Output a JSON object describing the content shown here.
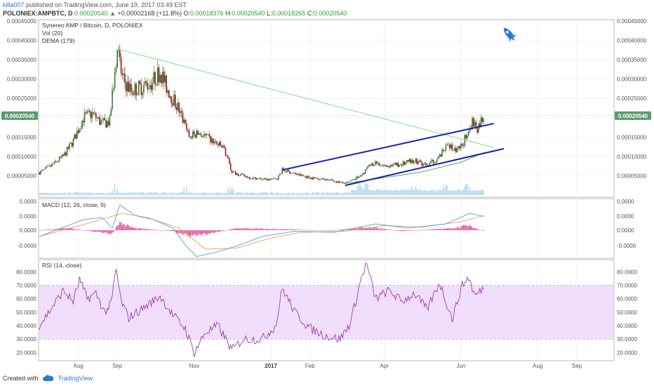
{
  "header": {
    "username": "killa007",
    "published": " published on TradingView.com, June 19, 2017 03:49 EST",
    "symbol": "POLONIEX:AMPBTC, D",
    "last": "0.00020540",
    "change_arrow": "▲",
    "change": "+0.00002168 (+11.8%)",
    "o_label": "O:",
    "o_value": "0.00018376",
    "h_label": "H:",
    "h_value": "0.00020540",
    "l_label": "L:",
    "l_value": "0.00018265",
    "c_label": "C:",
    "c_value": "0.00020540"
  },
  "footer": {
    "created_with": "Created with",
    "brand": "TradingView"
  },
  "colors": {
    "up": "#2e7d32",
    "down": "#8e1b1b",
    "channel": "#1a1ab5",
    "trend": "#7fe07f",
    "dema": "#3aa53a",
    "volume": "#a9d3ee",
    "macd_line": "#4aa3e8",
    "signal": "#f0a050",
    "hist": "#e0509a",
    "rsi": "#9b3db0",
    "rsi_band": "#f1defa",
    "price_tag": "#5a9b6e"
  },
  "chart_data": [
    {
      "type": "candlestick",
      "title": "Synereo AMP / Bitcoin, D, POLONIEX",
      "indicators": [
        "Vol (20)",
        "DEMA (179)"
      ],
      "last_price_label": "0.00020540",
      "yticks": [
        "0.00045000",
        "0.00040000",
        "0.00035000",
        "0.00030000",
        "0.00025000",
        "0.00020000",
        "0.00015000",
        "0.00010000",
        "0.00005000"
      ],
      "ylim": [
        0,
        0.00045
      ],
      "x_labels": [
        "Aug",
        "Sep",
        "Nov",
        "2017",
        "Feb",
        "Apr",
        "Jun",
        "Aug",
        "Sep"
      ],
      "x_label_dates": [
        "2016-08-01",
        "2016-09-01",
        "2016-11-01",
        "2017-01-01",
        "2017-02-01",
        "2017-04-01",
        "2017-06-01",
        "2017-08-01",
        "2017-09-01"
      ],
      "x_range": [
        "2016-07-01",
        "2017-09-30"
      ],
      "close_keyframes": [
        [
          "2016-07-01",
          5.8e-05
        ],
        [
          "2016-07-10",
          7.5e-05
        ],
        [
          "2016-07-20",
          0.0001
        ],
        [
          "2016-07-28",
          0.00014
        ],
        [
          "2016-08-05",
          0.0002
        ],
        [
          "2016-08-12",
          0.00021
        ],
        [
          "2016-08-20",
          0.000185
        ],
        [
          "2016-08-26",
          0.00019
        ],
        [
          "2016-08-30",
          0.00033
        ],
        [
          "2016-09-01",
          0.00038
        ],
        [
          "2016-09-05",
          0.0003
        ],
        [
          "2016-09-12",
          0.00027
        ],
        [
          "2016-09-20",
          0.00028
        ],
        [
          "2016-09-28",
          0.00029
        ],
        [
          "2016-10-05",
          0.00032
        ],
        [
          "2016-10-10",
          0.00028
        ],
        [
          "2016-10-20",
          0.00022
        ],
        [
          "2016-10-28",
          0.00015
        ],
        [
          "2016-11-05",
          0.00016
        ],
        [
          "2016-11-15",
          0.00014
        ],
        [
          "2016-11-25",
          0.00012
        ],
        [
          "2016-12-01",
          6e-05
        ],
        [
          "2016-12-15",
          4.5e-05
        ],
        [
          "2016-12-30",
          4e-05
        ],
        [
          "2017-01-06",
          4.3e-05
        ],
        [
          "2017-01-10",
          6.5e-05
        ],
        [
          "2017-01-20",
          5.5e-05
        ],
        [
          "2017-02-01",
          4.5e-05
        ],
        [
          "2017-02-15",
          4e-05
        ],
        [
          "2017-03-01",
          3e-05
        ],
        [
          "2017-03-08",
          4e-05
        ],
        [
          "2017-03-15",
          5.5e-05
        ],
        [
          "2017-03-20",
          7.5e-05
        ],
        [
          "2017-03-25",
          8.5e-05
        ],
        [
          "2017-04-01",
          7.5e-05
        ],
        [
          "2017-04-15",
          8e-05
        ],
        [
          "2017-04-25",
          9e-05
        ],
        [
          "2017-05-05",
          7.5e-05
        ],
        [
          "2017-05-15",
          0.0001
        ],
        [
          "2017-05-22",
          0.00013
        ],
        [
          "2017-05-28",
          0.00011
        ],
        [
          "2017-06-02",
          0.00013
        ],
        [
          "2017-06-07",
          0.00017
        ],
        [
          "2017-06-10",
          0.00019
        ],
        [
          "2017-06-14",
          0.000175
        ],
        [
          "2017-06-19",
          0.0002054
        ]
      ],
      "volume_peak_dates": [
        "2016-08-30",
        "2016-10-25",
        "2016-11-30",
        "2017-03-12",
        "2017-03-18",
        "2017-04-25",
        "2017-05-20",
        "2017-06-06"
      ],
      "dema_points": [
        [
          "2017-03-01",
          3e-05
        ],
        [
          "2017-04-01",
          4.5e-05
        ],
        [
          "2017-05-01",
          6e-05
        ],
        [
          "2017-06-01",
          8.5e-05
        ],
        [
          "2017-06-19",
          0.00011
        ]
      ],
      "annotations": [
        {
          "type": "trendline",
          "from": [
            "2016-09-01",
            0.000378
          ],
          "to": [
            "2017-06-27",
            0.000123
          ]
        },
        {
          "type": "channel_upper",
          "from": [
            "2017-01-10",
            6.5e-05
          ],
          "to": [
            "2017-06-27",
            0.000185
          ]
        },
        {
          "type": "channel_lower",
          "from": [
            "2017-03-01",
            2.5e-05
          ],
          "to": [
            "2017-07-05",
            0.00012
          ]
        }
      ]
    },
    {
      "type": "line",
      "title": "MACD (12, 26, close, 9)",
      "yticks": [
        "0.0000",
        "0.0000",
        "0.0000",
        "-0.0000"
      ],
      "macd_keyframes": [
        [
          "2016-07-01",
          -0.3
        ],
        [
          "2016-08-05",
          0.5
        ],
        [
          "2016-08-20",
          0.6
        ],
        [
          "2016-08-28",
          0.1
        ],
        [
          "2016-09-03",
          1.2
        ],
        [
          "2016-09-15",
          0.7
        ],
        [
          "2016-09-30",
          0.5
        ],
        [
          "2016-10-15",
          0.1
        ],
        [
          "2016-10-25",
          -0.7
        ],
        [
          "2016-11-03",
          -1.25
        ],
        [
          "2016-11-18",
          -1.05
        ],
        [
          "2016-12-05",
          -0.75
        ],
        [
          "2016-12-25",
          -0.3
        ],
        [
          "2017-01-20",
          -0.05
        ],
        [
          "2017-02-20",
          -0.1
        ],
        [
          "2017-03-25",
          0.3
        ],
        [
          "2017-04-20",
          0.1
        ],
        [
          "2017-05-20",
          0.3
        ],
        [
          "2017-06-08",
          0.8
        ],
        [
          "2017-06-19",
          0.65
        ]
      ],
      "signal_keyframes": [
        [
          "2016-07-01",
          -0.3
        ],
        [
          "2016-08-10",
          0.35
        ],
        [
          "2016-09-05",
          0.8
        ],
        [
          "2016-09-25",
          0.6
        ],
        [
          "2016-10-20",
          0.1
        ],
        [
          "2016-11-10",
          -0.9
        ],
        [
          "2016-12-05",
          -0.85
        ],
        [
          "2016-12-30",
          -0.4
        ],
        [
          "2017-01-25",
          -0.1
        ],
        [
          "2017-03-01",
          -0.05
        ],
        [
          "2017-04-01",
          0.22
        ],
        [
          "2017-05-01",
          0.15
        ],
        [
          "2017-06-01",
          0.4
        ],
        [
          "2017-06-19",
          0.7
        ]
      ],
      "hist_keyframes": [
        [
          "2016-07-01",
          0
        ],
        [
          "2016-07-25",
          0.1
        ],
        [
          "2016-08-28",
          -0.2
        ],
        [
          "2016-09-02",
          0.4
        ],
        [
          "2016-09-15",
          0.1
        ],
        [
          "2016-10-15",
          -0.05
        ],
        [
          "2016-10-28",
          -0.3
        ],
        [
          "2016-11-10",
          -0.2
        ],
        [
          "2016-12-05",
          0.1
        ],
        [
          "2017-01-10",
          0.05
        ],
        [
          "2017-02-15",
          -0.02
        ],
        [
          "2017-03-20",
          0.15
        ],
        [
          "2017-04-15",
          -0.05
        ],
        [
          "2017-05-25",
          0.1
        ],
        [
          "2017-06-06",
          0.25
        ],
        [
          "2017-06-19",
          -0.05
        ]
      ]
    },
    {
      "type": "line",
      "title": "RSI (14, close)",
      "yticks": [
        80,
        70,
        60,
        50,
        40,
        30,
        20
      ],
      "ytick_labels": [
        "80.0000",
        "70.0000",
        "60.0000",
        "50.0000",
        "40.0000",
        "30.0000",
        "20.0000"
      ],
      "ylim": [
        15,
        88
      ],
      "band": [
        30,
        70
      ],
      "rsi_keyframes": [
        [
          "2016-07-01",
          40
        ],
        [
          "2016-07-10",
          52
        ],
        [
          "2016-07-20",
          66
        ],
        [
          "2016-07-28",
          58
        ],
        [
          "2016-08-02",
          74
        ],
        [
          "2016-08-08",
          60
        ],
        [
          "2016-08-15",
          64
        ],
        [
          "2016-08-22",
          50
        ],
        [
          "2016-08-27",
          56
        ],
        [
          "2016-08-31",
          82
        ],
        [
          "2016-09-04",
          58
        ],
        [
          "2016-09-10",
          46
        ],
        [
          "2016-09-20",
          52
        ],
        [
          "2016-10-05",
          62
        ],
        [
          "2016-10-15",
          48
        ],
        [
          "2016-10-25",
          38
        ],
        [
          "2016-11-01",
          20
        ],
        [
          "2016-11-10",
          35
        ],
        [
          "2016-11-20",
          40
        ],
        [
          "2016-12-01",
          22
        ],
        [
          "2016-12-10",
          30
        ],
        [
          "2016-12-25",
          30
        ],
        [
          "2017-01-05",
          40
        ],
        [
          "2017-01-10",
          68
        ],
        [
          "2017-01-20",
          50
        ],
        [
          "2017-02-01",
          38
        ],
        [
          "2017-02-15",
          32
        ],
        [
          "2017-02-25",
          30
        ],
        [
          "2017-03-05",
          42
        ],
        [
          "2017-03-14",
          76
        ],
        [
          "2017-03-18",
          86
        ],
        [
          "2017-03-25",
          60
        ],
        [
          "2017-04-05",
          66
        ],
        [
          "2017-04-15",
          58
        ],
        [
          "2017-04-25",
          64
        ],
        [
          "2017-05-05",
          52
        ],
        [
          "2017-05-15",
          72
        ],
        [
          "2017-05-25",
          45
        ],
        [
          "2017-06-02",
          70
        ],
        [
          "2017-06-07",
          76
        ],
        [
          "2017-06-12",
          62
        ],
        [
          "2017-06-19",
          68
        ]
      ]
    }
  ]
}
